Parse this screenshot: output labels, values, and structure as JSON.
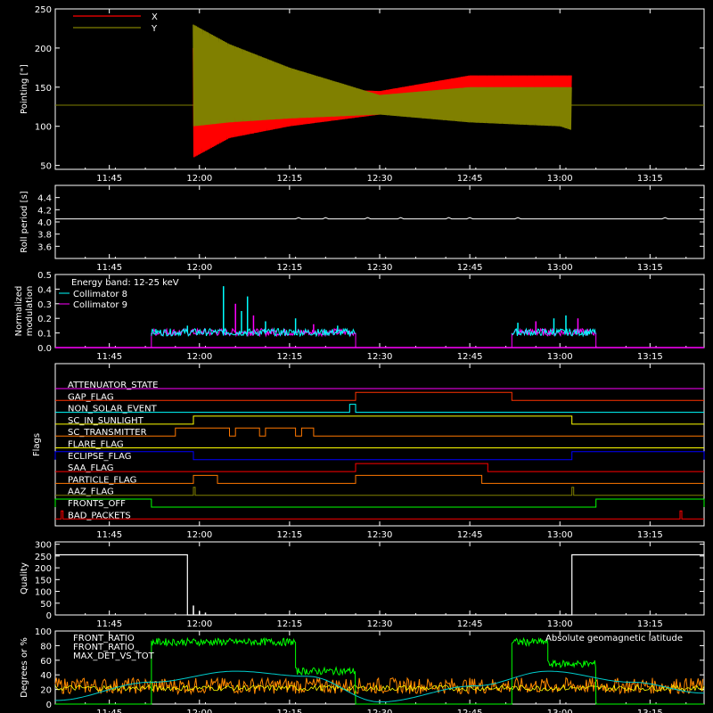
{
  "time_ticks": [
    "11:45",
    "12:00",
    "12:15",
    "12:30",
    "12:45",
    "13:00",
    "13:15"
  ],
  "time_tick_values": [
    "11:45",
    "12:00",
    "12:15",
    "12:30",
    "12:45",
    "13:00",
    "13:15"
  ],
  "chart_data": [
    {
      "type": "line",
      "id": "pointing",
      "ylabel": "Pointing [\"]",
      "ylim": [
        45,
        250
      ],
      "yticks": [
        "50",
        "100",
        "150",
        "200",
        "250"
      ],
      "ytick_values": [
        50,
        100,
        150,
        200,
        250
      ],
      "xlim": [
        "11:36",
        "13:24"
      ],
      "legend_placement": "top-left",
      "series": [
        {
          "name": "X",
          "color": "#ff0000",
          "envelope": [
            {
              "t": "11:59",
              "low": 60,
              "high": 200
            },
            {
              "t": "12:05",
              "low": 85,
              "high": 170
            },
            {
              "t": "12:15",
              "low": 100,
              "high": 150
            },
            {
              "t": "12:30",
              "low": 115,
              "high": 145
            },
            {
              "t": "12:45",
              "low": 125,
              "high": 165
            },
            {
              "t": "13:00",
              "low": 125,
              "high": 165
            },
            {
              "t": "13:02",
              "low": 125,
              "high": 165
            }
          ]
        },
        {
          "name": "Y",
          "color": "#808000",
          "envelope": [
            {
              "t": "11:59",
              "low": 100,
              "high": 230
            },
            {
              "t": "12:05",
              "low": 105,
              "high": 205
            },
            {
              "t": "12:15",
              "low": 110,
              "high": 175
            },
            {
              "t": "12:30",
              "low": 115,
              "high": 140
            },
            {
              "t": "12:45",
              "low": 105,
              "high": 150
            },
            {
              "t": "13:00",
              "low": 100,
              "high": 150
            },
            {
              "t": "13:02",
              "low": 95,
              "high": 150
            }
          ]
        }
      ],
      "baseline": 127
    },
    {
      "type": "line",
      "id": "roll",
      "ylabel": "Roll period [s]",
      "ylim": [
        3.4,
        4.6
      ],
      "yticks": [
        "3.6",
        "3.8",
        "4.0",
        "4.2",
        "4.4"
      ],
      "ytick_values": [
        3.6,
        3.8,
        4.0,
        4.2,
        4.4
      ],
      "series": [
        {
          "name": "",
          "color": "#ffffff",
          "constant": 4.05,
          "range": [
            "11:36",
            "13:24"
          ]
        }
      ]
    },
    {
      "type": "line",
      "id": "modulation",
      "ylabel": "Normalized modulation",
      "ylim": [
        0,
        0.5
      ],
      "yticks": [
        "0.0",
        "0.1",
        "0.2",
        "0.3",
        "0.4",
        "0.5"
      ],
      "ytick_values": [
        0,
        0.1,
        0.2,
        0.3,
        0.4,
        0.5
      ],
      "annotation": "Energy band: 12-25 keV",
      "series": [
        {
          "name": "Collimator 8",
          "color": "#00ffff"
        },
        {
          "name": "Collimator 9",
          "color": "#ff00ff"
        }
      ],
      "active_intervals": [
        [
          "11:52",
          "12:26"
        ],
        [
          "12:52",
          "13:06"
        ]
      ],
      "baseline": 0.1,
      "peaks": [
        {
          "t": "11:58",
          "v": 0.15
        },
        {
          "t": "12:04",
          "v": 0.42
        },
        {
          "t": "12:06",
          "v": 0.3
        },
        {
          "t": "12:07",
          "v": 0.25
        },
        {
          "t": "12:08",
          "v": 0.35
        },
        {
          "t": "12:09",
          "v": 0.22
        },
        {
          "t": "12:11",
          "v": 0.18
        },
        {
          "t": "12:16",
          "v": 0.2
        },
        {
          "t": "12:19",
          "v": 0.16
        },
        {
          "t": "12:23",
          "v": 0.15
        },
        {
          "t": "12:53",
          "v": 0.17
        },
        {
          "t": "12:56",
          "v": 0.18
        },
        {
          "t": "12:59",
          "v": 0.2
        },
        {
          "t": "13:01",
          "v": 0.22
        },
        {
          "t": "13:03",
          "v": 0.2
        }
      ]
    },
    {
      "type": "line",
      "id": "flags",
      "ylabel": "Flags",
      "flags": [
        {
          "name": "ATTENUATOR_STATE",
          "color": "#ff00ff",
          "high": []
        },
        {
          "name": "GAP_FLAG",
          "color": "#ff3300",
          "high": [
            [
              "12:26",
              "12:52"
            ]
          ]
        },
        {
          "name": "NON_SOLAR_EVENT",
          "color": "#00ffff",
          "high": [
            [
              "12:25",
              "12:26"
            ]
          ]
        },
        {
          "name": "SC_IN_SUNLIGHT",
          "color": "#ffff00",
          "high": [
            [
              "11:59",
              "13:02"
            ]
          ]
        },
        {
          "name": "SC_TRANSMITTER",
          "color": "#ff7700",
          "high": [
            [
              "11:56",
              "12:05"
            ],
            [
              "12:06",
              "12:10"
            ],
            [
              "12:11",
              "12:16"
            ],
            [
              "12:17",
              "12:19"
            ]
          ]
        },
        {
          "name": "FLARE_FLAG",
          "color": "#ffff00",
          "high": []
        },
        {
          "name": "ECLIPSE_FLAG",
          "color": "#0000ff",
          "high": [
            [
              "11:36",
              "11:59"
            ],
            [
              "13:02",
              "13:24"
            ]
          ]
        },
        {
          "name": "SAA_FLAG",
          "color": "#ff0000",
          "high": [
            [
              "12:26",
              "12:48"
            ]
          ]
        },
        {
          "name": "PARTICLE_FLAG",
          "color": "#ff7700",
          "high": [
            [
              "11:59",
              "12:03"
            ],
            [
              "12:26",
              "12:47"
            ]
          ]
        },
        {
          "name": "AAZ_FLAG",
          "color": "#808000",
          "high": [
            [
              "11:59",
              "11:59"
            ],
            [
              "13:02",
              "13:02"
            ]
          ]
        },
        {
          "name": "FRONTS_OFF",
          "color": "#00ff00",
          "high": [
            [
              "11:36",
              "11:52"
            ],
            [
              "13:06",
              "13:24"
            ]
          ]
        },
        {
          "name": "BAD_PACKETS",
          "color": "#ff0000",
          "high": [
            [
              "11:37",
              "11:37"
            ],
            [
              "13:20",
              "13:20"
            ]
          ]
        }
      ]
    },
    {
      "type": "line",
      "id": "quality",
      "ylabel": "Quality",
      "ylim": [
        0,
        310
      ],
      "yticks": [
        "0",
        "50",
        "100",
        "150",
        "200",
        "250",
        "300"
      ],
      "ytick_values": [
        0,
        50,
        100,
        150,
        200,
        250,
        300
      ],
      "series": [
        {
          "name": "",
          "color": "#ffffff",
          "points": [
            [
              "11:36",
              255
            ],
            [
              "11:58",
              255
            ],
            [
              "11:58",
              0
            ],
            [
              "13:02",
              0
            ],
            [
              "13:02",
              255
            ],
            [
              "13:24",
              255
            ]
          ]
        }
      ]
    },
    {
      "type": "line",
      "id": "fronts",
      "ylabel": "Degrees or %",
      "ylim": [
        0,
        100
      ],
      "yticks": [
        "0",
        "20",
        "40",
        "60",
        "80",
        "100"
      ],
      "ytick_values": [
        0,
        20,
        40,
        60,
        80,
        100
      ],
      "series": [
        {
          "name": "FRONT_RATIO",
          "color": "#ffff00"
        },
        {
          "name": "FRONT_RATIO_ ",
          "color": "#00ff00"
        },
        {
          "name": "MAX_DET_VS_TOT",
          "color": "#ff8800"
        },
        {
          "name": "Absolute geomagnetic latitude",
          "color": "#00cccc"
        }
      ],
      "green_segments": [
        {
          "from": "11:52",
          "to": "12:16",
          "level": 85
        },
        {
          "from": "12:16",
          "to": "12:26",
          "level": 45
        },
        {
          "from": "12:52",
          "to": "12:58",
          "level": 85
        },
        {
          "from": "12:58",
          "to": "13:06",
          "level": 55
        }
      ],
      "orange_level": 25,
      "latitude": [
        {
          "t": "11:36",
          "v": 5
        },
        {
          "t": "11:52",
          "v": 30
        },
        {
          "t": "12:06",
          "v": 45
        },
        {
          "t": "12:18",
          "v": 38
        },
        {
          "t": "12:30",
          "v": 3
        },
        {
          "t": "12:46",
          "v": 25
        },
        {
          "t": "12:58",
          "v": 45
        },
        {
          "t": "13:12",
          "v": 30
        },
        {
          "t": "13:24",
          "v": 15
        }
      ]
    }
  ]
}
